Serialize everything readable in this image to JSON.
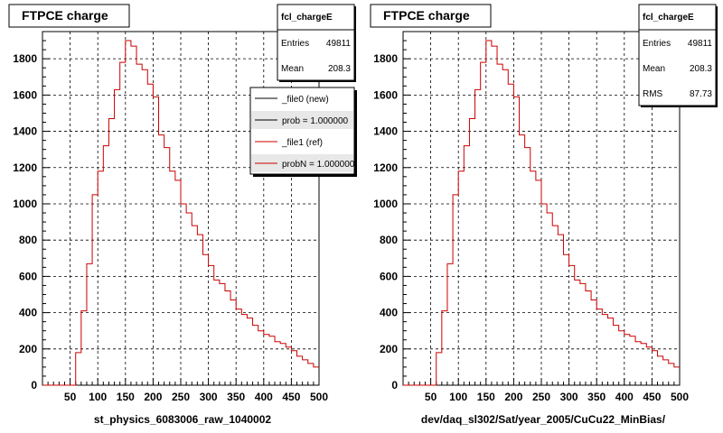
{
  "chart_data": [
    {
      "type": "line",
      "title": "FTPCE charge",
      "xlabel": "st_physics_6083006_raw_1040002",
      "ylabel": "",
      "xlim": [
        0,
        500
      ],
      "ylim": [
        0,
        1950
      ],
      "grid": true,
      "x_ticks": [
        "50",
        "100",
        "150",
        "200",
        "250",
        "300",
        "350",
        "400",
        "450",
        "500"
      ],
      "y_ticks": [
        "0",
        "200",
        "400",
        "600",
        "800",
        "1000",
        "1200",
        "1400",
        "1600",
        "1800"
      ],
      "series": [
        {
          "name": "_file1 (ref)",
          "color": "#cc0000",
          "bin_edges": [
            0,
            10,
            20,
            30,
            40,
            50,
            60,
            70,
            80,
            90,
            100,
            110,
            120,
            130,
            140,
            150,
            160,
            170,
            180,
            190,
            200,
            210,
            220,
            230,
            240,
            250,
            260,
            270,
            280,
            290,
            300,
            310,
            320,
            330,
            340,
            350,
            360,
            370,
            380,
            390,
            400,
            410,
            420,
            430,
            440,
            450,
            460,
            470,
            480,
            490,
            500
          ],
          "values": [
            0,
            0,
            0,
            0,
            0,
            0,
            180,
            410,
            670,
            1050,
            1180,
            1320,
            1470,
            1630,
            1780,
            1900,
            1870,
            1770,
            1740,
            1660,
            1590,
            1380,
            1310,
            1180,
            1130,
            1000,
            950,
            880,
            830,
            720,
            660,
            580,
            560,
            520,
            470,
            420,
            390,
            370,
            330,
            300,
            280,
            270,
            240,
            230,
            210,
            190,
            160,
            140,
            120,
            100
          ]
        }
      ],
      "legend": {
        "placement": "top-right",
        "entries": [
          {
            "label": "_file0 (new)",
            "color": "#000000"
          },
          {
            "label": "prob = 1.000000",
            "color": "#000000"
          },
          {
            "label": "_file1 (ref)",
            "color": "#cc0000"
          },
          {
            "label": "probN = 1.000000",
            "color": "#cc0000"
          }
        ]
      },
      "stats": {
        "name": "fcl_chargeE",
        "rows": [
          {
            "label": "Entries",
            "value": "49811"
          },
          {
            "label": "Mean",
            "value": "208.3"
          }
        ]
      }
    },
    {
      "type": "line",
      "title": "FTPCE charge",
      "xlabel": "dev/daq_sl302/Sat/year_2005/CuCu22_MinBias/",
      "ylabel": "",
      "xlim": [
        0,
        500
      ],
      "ylim": [
        0,
        1950
      ],
      "grid": true,
      "x_ticks": [
        "50",
        "100",
        "150",
        "200",
        "250",
        "300",
        "350",
        "400",
        "450",
        "500"
      ],
      "y_ticks": [
        "0",
        "200",
        "400",
        "600",
        "800",
        "1000",
        "1200",
        "1400",
        "1600",
        "1800"
      ],
      "series": [
        {
          "name": "",
          "color": "#cc0000",
          "bin_edges": [
            0,
            10,
            20,
            30,
            40,
            50,
            60,
            70,
            80,
            90,
            100,
            110,
            120,
            130,
            140,
            150,
            160,
            170,
            180,
            190,
            200,
            210,
            220,
            230,
            240,
            250,
            260,
            270,
            280,
            290,
            300,
            310,
            320,
            330,
            340,
            350,
            360,
            370,
            380,
            390,
            400,
            410,
            420,
            430,
            440,
            450,
            460,
            470,
            480,
            490,
            500
          ],
          "values": [
            0,
            0,
            0,
            0,
            0,
            0,
            180,
            410,
            670,
            1050,
            1180,
            1320,
            1470,
            1630,
            1780,
            1900,
            1870,
            1770,
            1740,
            1660,
            1590,
            1380,
            1310,
            1180,
            1130,
            1000,
            950,
            880,
            830,
            720,
            660,
            580,
            560,
            520,
            470,
            420,
            390,
            370,
            330,
            300,
            280,
            270,
            240,
            230,
            210,
            190,
            160,
            140,
            120,
            100
          ]
        }
      ],
      "stats": {
        "name": "fcl_chargeE",
        "rows": [
          {
            "label": "Entries",
            "value": "49811"
          },
          {
            "label": "Mean",
            "value": "208.3"
          },
          {
            "label": "RMS",
            "value": "87.73"
          }
        ]
      }
    }
  ]
}
